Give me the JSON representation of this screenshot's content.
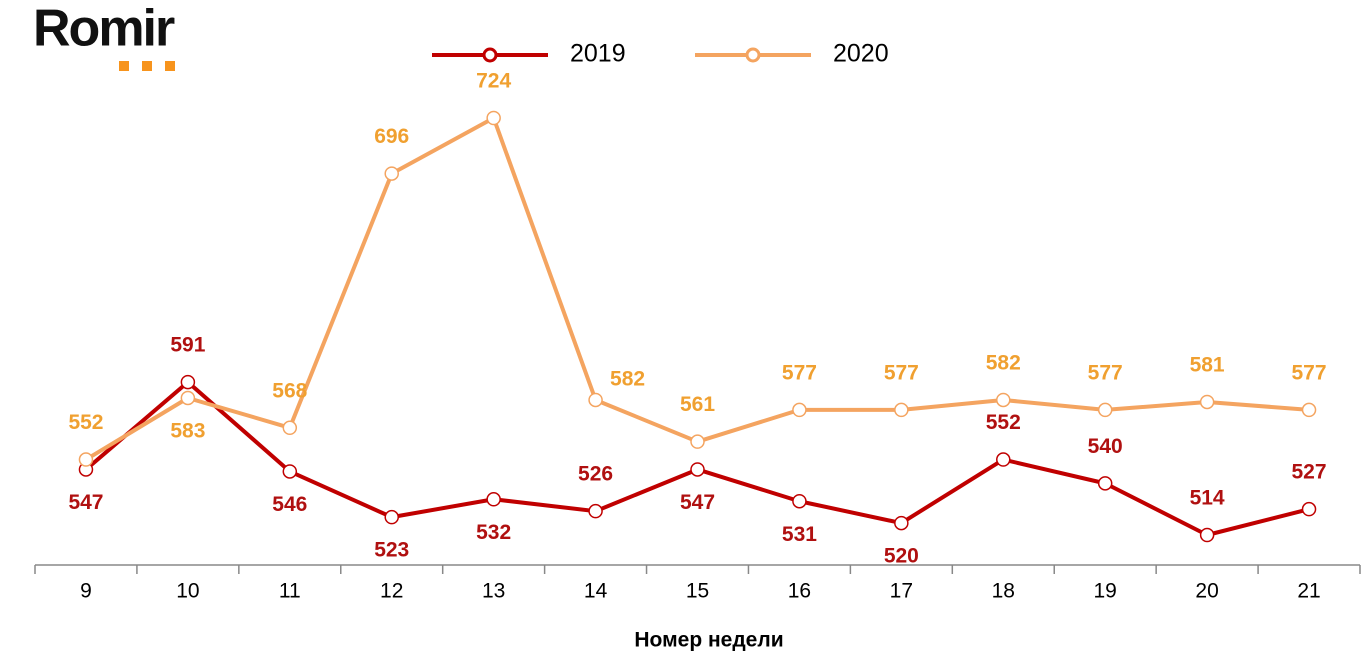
{
  "logo": "Romir",
  "chart_data": {
    "type": "line",
    "x_label": "Номер недели",
    "categories": [
      9,
      10,
      11,
      12,
      13,
      14,
      15,
      16,
      17,
      18,
      19,
      20,
      21
    ],
    "series": [
      {
        "name": "2019",
        "color": "#c00000",
        "label_color": "#b01010",
        "values": [
          547,
          591,
          546,
          523,
          532,
          526,
          547,
          531,
          520,
          552,
          540,
          514,
          527
        ]
      },
      {
        "name": "2020",
        "color": "#f4a460",
        "label_color": "#f0a030",
        "values": [
          552,
          583,
          568,
          696,
          724,
          582,
          561,
          577,
          577,
          582,
          577,
          581,
          577
        ]
      }
    ]
  }
}
